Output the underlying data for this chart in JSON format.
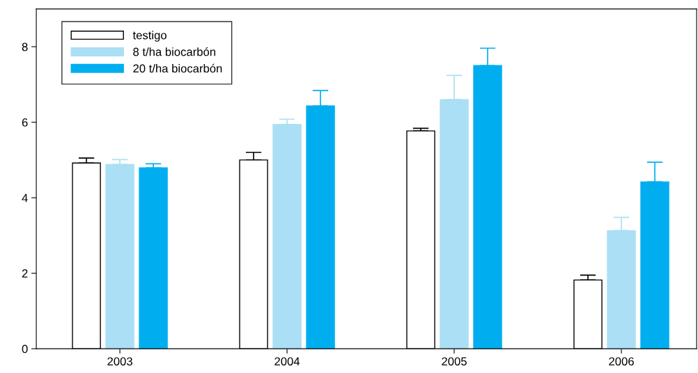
{
  "chart_data": {
    "type": "bar",
    "categories": [
      "2003",
      "2004",
      "2005",
      "2006"
    ],
    "series": [
      {
        "name": "testigo",
        "color": "#ffffff",
        "values": [
          4.92,
          5.0,
          5.77,
          1.82
        ],
        "errors": [
          [
            4.92,
            5.05
          ],
          [
            5.0,
            5.2
          ],
          [
            5.77,
            5.84
          ],
          [
            1.82,
            1.95
          ]
        ]
      },
      {
        "name": "8 t/ha biocarbón",
        "color": "#aadff5",
        "values": [
          4.88,
          5.94,
          6.6,
          3.13
        ],
        "errors": [
          [
            4.88,
            5.01
          ],
          [
            5.94,
            6.08
          ],
          [
            6.6,
            7.24
          ],
          [
            3.13,
            3.48
          ]
        ]
      },
      {
        "name": "20 t/ha biocarbón",
        "color": "#00aeef",
        "values": [
          4.79,
          6.43,
          7.5,
          4.42
        ],
        "errors": [
          [
            4.79,
            4.9
          ],
          [
            6.43,
            6.84
          ],
          [
            7.5,
            7.96
          ],
          [
            4.42,
            4.94
          ]
        ]
      }
    ],
    "ylim": [
      0,
      9
    ],
    "yticks": [
      0,
      2,
      4,
      6,
      8
    ],
    "grid": false,
    "legend": "top left"
  }
}
